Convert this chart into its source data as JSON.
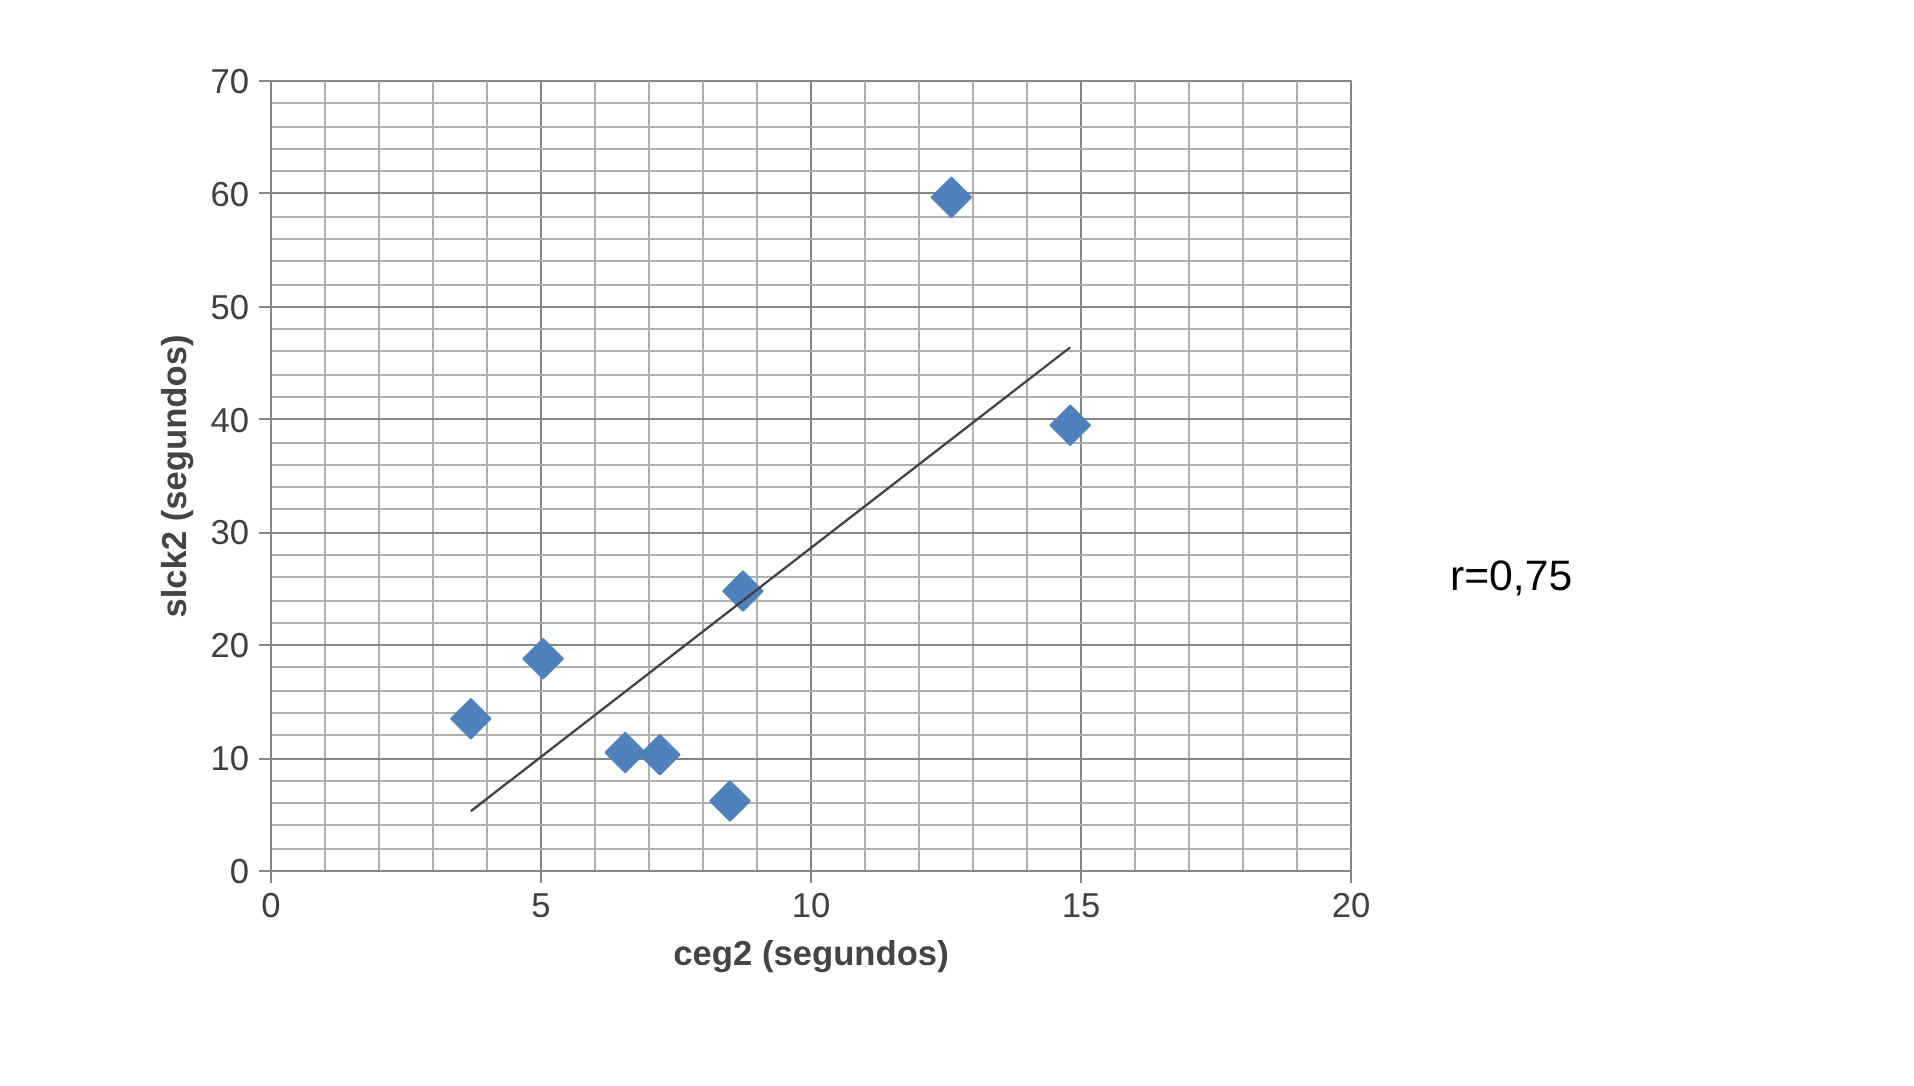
{
  "chart_data": {
    "type": "scatter",
    "xlabel": "ceg2 (segundos)",
    "ylabel": "slck2 (segundos)",
    "xlim": [
      0,
      20
    ],
    "ylim": [
      0,
      70
    ],
    "xticks": [
      0,
      5,
      10,
      15,
      20,
      {
        "value": 1,
        "label": null
      },
      {
        "value": 2,
        "label": null
      },
      {
        "value": 3,
        "label": null
      },
      {
        "value": 4,
        "label": null
      },
      {
        "value": 6,
        "label": null
      },
      {
        "value": 7,
        "label": null
      },
      {
        "value": 8,
        "label": null
      },
      {
        "value": 9,
        "label": null
      },
      {
        "value": 11,
        "label": null
      },
      {
        "value": 12,
        "label": null
      },
      {
        "value": 13,
        "label": null
      },
      {
        "value": 14,
        "label": null
      },
      {
        "value": 16,
        "label": null
      },
      {
        "value": 17,
        "label": null
      },
      {
        "value": 18,
        "label": null
      },
      {
        "value": 19,
        "label": null
      }
    ],
    "yticks": [
      0,
      10,
      20,
      30,
      40,
      50,
      60,
      70,
      {
        "value": 2,
        "label": null
      },
      {
        "value": 4,
        "label": null
      },
      {
        "value": 6,
        "label": null
      },
      {
        "value": 8,
        "label": null
      },
      {
        "value": 12,
        "label": null
      },
      {
        "value": 14,
        "label": null
      },
      {
        "value": 16,
        "label": null
      },
      {
        "value": 18,
        "label": null
      },
      {
        "value": 22,
        "label": null
      },
      {
        "value": 24,
        "label": null
      },
      {
        "value": 26,
        "label": null
      },
      {
        "value": 28,
        "label": null
      },
      {
        "value": 32,
        "label": null
      },
      {
        "value": 34,
        "label": null
      },
      {
        "value": 36,
        "label": null
      },
      {
        "value": 38,
        "label": null
      },
      {
        "value": 42,
        "label": null
      },
      {
        "value": 44,
        "label": null
      },
      {
        "value": 46,
        "label": null
      },
      {
        "value": 48,
        "label": null
      },
      {
        "value": 52,
        "label": null
      },
      {
        "value": 54,
        "label": null
      },
      {
        "value": 56,
        "label": null
      },
      {
        "value": 58,
        "label": null
      },
      {
        "value": 62,
        "label": null
      },
      {
        "value": 64,
        "label": null
      },
      {
        "value": 66,
        "label": null
      },
      {
        "value": 68,
        "label": null
      }
    ],
    "grid": true,
    "marker": "diamond",
    "series": [
      {
        "color": "#4f81bd",
        "x": [
          3.7,
          5.04,
          6.56,
          7.2,
          8.5,
          8.74,
          12.6,
          14.8
        ],
        "values": [
          13.5,
          18.8,
          10.5,
          10.3,
          6.2,
          24.8,
          59.7,
          39.5
        ]
      },
      {
        "type": "line",
        "color": "#404040",
        "marker": "none",
        "x": [
          3.7,
          14.8
        ],
        "values": [
          5.3,
          46.4
        ]
      }
    ],
    "annotations": [
      "r=0,75"
    ]
  }
}
